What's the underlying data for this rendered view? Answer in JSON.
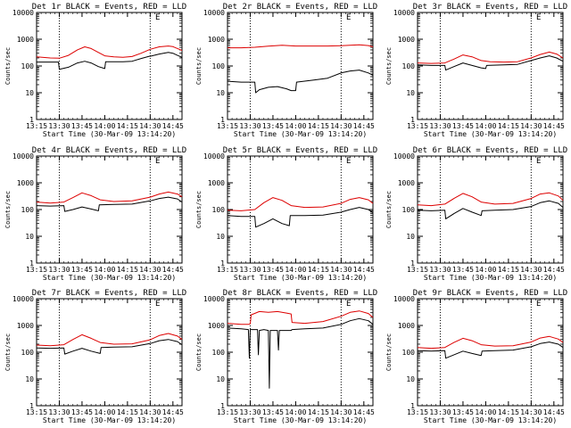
{
  "colors": {
    "events": "#000000",
    "lld": "#dd0000",
    "axis": "#000000",
    "background": "#ffffff"
  },
  "figure": {
    "xlabel": "Start Time (30-Mar-09 13:14:20)",
    "ylabel": "Counts/sec",
    "y_tick_labels": [
      "1",
      "10",
      "100",
      "1000",
      "10000"
    ],
    "x_tick_labels": [
      "13:15",
      "13:30",
      "13:45",
      "14:00",
      "14:15",
      "14:30",
      "14:45"
    ],
    "corner_marks": [
      "E",
      "E",
      "E",
      "E",
      "E",
      "E",
      "E",
      "E",
      "E"
    ]
  },
  "chart_data": [
    {
      "type": "line",
      "title": "Det 1r BLACK = Events, RED = LLD",
      "xlabel": "Start Time (30-Mar-09 13:14:20)",
      "ylabel": "Counts/sec",
      "xlim": [
        13.25,
        14.85
      ],
      "ylim": [
        1,
        10000
      ],
      "yscale": "log",
      "x_ticks": [
        13.25,
        13.5,
        13.75,
        14.0,
        14.25,
        14.5,
        14.75
      ],
      "vlines": [
        13.5,
        14.5
      ],
      "series": [
        {
          "name": "Events",
          "x": [
            13.25,
            13.4,
            13.49,
            13.5,
            13.6,
            13.7,
            13.78,
            13.85,
            13.93,
            14.0,
            14.01,
            14.1,
            14.2,
            14.3,
            14.4,
            14.49,
            14.5,
            14.6,
            14.7,
            14.75,
            14.8,
            14.85
          ],
          "y": [
            140,
            140,
            140,
            75,
            90,
            130,
            150,
            130,
            95,
            80,
            145,
            145,
            145,
            150,
            190,
            230,
            230,
            280,
            320,
            300,
            250,
            210
          ]
        },
        {
          "name": "LLD",
          "x": [
            13.25,
            13.4,
            13.5,
            13.6,
            13.7,
            13.78,
            13.85,
            13.93,
            14.0,
            14.1,
            14.2,
            14.3,
            14.4,
            14.5,
            14.6,
            14.7,
            14.75,
            14.8,
            14.85
          ],
          "y": [
            220,
            200,
            195,
            250,
            400,
            520,
            450,
            320,
            240,
            220,
            210,
            225,
            300,
            420,
            520,
            560,
            530,
            450,
            380
          ]
        }
      ]
    },
    {
      "type": "line",
      "title": "Det 2r BLACK = Events, RED = LLD",
      "xlabel": "Start Time (30-Mar-09 13:14:20)",
      "ylabel": "Counts/sec",
      "xlim": [
        13.25,
        14.85
      ],
      "ylim": [
        1,
        10000
      ],
      "yscale": "log",
      "x_ticks": [
        13.25,
        13.5,
        13.75,
        14.0,
        14.25,
        14.5,
        14.75
      ],
      "vlines": [
        13.5,
        14.5
      ],
      "series": [
        {
          "name": "Events",
          "x": [
            13.25,
            13.4,
            13.55,
            13.56,
            13.6,
            13.7,
            13.8,
            13.9,
            13.95,
            14.0,
            14.01,
            14.2,
            14.35,
            14.5,
            14.6,
            14.7,
            14.8,
            14.85
          ],
          "y": [
            27,
            25,
            25,
            10,
            13,
            16,
            17,
            14,
            12,
            12,
            25,
            30,
            35,
            55,
            65,
            70,
            55,
            45
          ]
        },
        {
          "name": "LLD",
          "x": [
            13.25,
            13.4,
            13.55,
            13.7,
            13.85,
            14.0,
            14.2,
            14.35,
            14.5,
            14.6,
            14.7,
            14.8,
            14.85
          ],
          "y": [
            480,
            480,
            500,
            550,
            600,
            560,
            560,
            560,
            570,
            600,
            620,
            580,
            520
          ]
        }
      ]
    },
    {
      "type": "line",
      "title": "Det 3r BLACK = Events, RED = LLD",
      "xlabel": "Start Time (30-Mar-09 13:14:20)",
      "ylabel": "Counts/sec",
      "xlim": [
        13.25,
        14.85
      ],
      "ylim": [
        1,
        10000
      ],
      "yscale": "log",
      "x_ticks": [
        13.25,
        13.5,
        13.75,
        14.0,
        14.25,
        14.5,
        14.75
      ],
      "vlines": [
        13.5,
        14.5
      ],
      "series": [
        {
          "name": "Events",
          "x": [
            13.25,
            13.4,
            13.55,
            13.56,
            13.65,
            13.75,
            13.85,
            13.95,
            14.0,
            14.01,
            14.2,
            14.35,
            14.5,
            14.6,
            14.7,
            14.78,
            14.85
          ],
          "y": [
            110,
            105,
            105,
            70,
            95,
            130,
            105,
            85,
            80,
            105,
            110,
            115,
            160,
            200,
            240,
            200,
            150
          ]
        },
        {
          "name": "LLD",
          "x": [
            13.25,
            13.4,
            13.55,
            13.65,
            13.75,
            13.85,
            13.95,
            14.05,
            14.2,
            14.35,
            14.5,
            14.6,
            14.7,
            14.78,
            14.85
          ],
          "y": [
            130,
            125,
            130,
            180,
            260,
            220,
            160,
            145,
            140,
            145,
            200,
            270,
            330,
            280,
            200
          ]
        }
      ]
    },
    {
      "type": "line",
      "title": "Det 4r BLACK = Events, RED = LLD",
      "xlabel": "Start Time (30-Mar-09 13:14:20)",
      "ylabel": "Counts/sec",
      "xlim": [
        13.25,
        14.85
      ],
      "ylim": [
        1,
        10000
      ],
      "yscale": "log",
      "x_ticks": [
        13.25,
        13.5,
        13.75,
        14.0,
        14.25,
        14.5,
        14.75
      ],
      "vlines": [
        13.5,
        14.5
      ],
      "series": [
        {
          "name": "Events",
          "x": [
            13.25,
            13.4,
            13.55,
            13.56,
            13.65,
            13.75,
            13.85,
            13.93,
            13.94,
            14.1,
            14.3,
            14.5,
            14.6,
            14.7,
            14.8,
            14.85
          ],
          "y": [
            140,
            135,
            140,
            85,
            100,
            125,
            105,
            90,
            150,
            155,
            160,
            210,
            260,
            290,
            250,
            190
          ]
        },
        {
          "name": "LLD",
          "x": [
            13.25,
            13.4,
            13.55,
            13.65,
            13.75,
            13.85,
            13.95,
            14.1,
            14.3,
            14.5,
            14.6,
            14.7,
            14.8,
            14.85
          ],
          "y": [
            190,
            175,
            190,
            280,
            420,
            330,
            230,
            200,
            210,
            290,
            380,
            450,
            380,
            300
          ]
        }
      ]
    },
    {
      "type": "line",
      "title": "Det 5r BLACK = Events, RED = LLD",
      "xlabel": "Start Time (30-Mar-09 13:14:20)",
      "ylabel": "Counts/sec",
      "xlim": [
        13.25,
        14.85
      ],
      "ylim": [
        1,
        10000
      ],
      "yscale": "log",
      "x_ticks": [
        13.25,
        13.5,
        13.75,
        14.0,
        14.25,
        14.5,
        14.75
      ],
      "vlines": [
        13.5,
        14.5
      ],
      "series": [
        {
          "name": "Events",
          "x": [
            13.25,
            13.4,
            13.55,
            13.56,
            13.65,
            13.75,
            13.85,
            13.93,
            13.94,
            14.1,
            14.3,
            14.5,
            14.6,
            14.7,
            14.8,
            14.85
          ],
          "y": [
            60,
            55,
            55,
            22,
            30,
            45,
            30,
            25,
            60,
            60,
            62,
            80,
            100,
            120,
            100,
            75
          ]
        },
        {
          "name": "LLD",
          "x": [
            13.25,
            13.4,
            13.55,
            13.65,
            13.75,
            13.85,
            13.95,
            14.1,
            14.3,
            14.5,
            14.6,
            14.7,
            14.8,
            14.85
          ],
          "y": [
            95,
            90,
            100,
            180,
            280,
            220,
            140,
            120,
            125,
            170,
            240,
            280,
            230,
            170
          ]
        }
      ]
    },
    {
      "type": "line",
      "title": "Det 6r BLACK = Events, RED = LLD",
      "xlabel": "Start Time (30-Mar-09 13:14:20)",
      "ylabel": "Counts/sec",
      "xlim": [
        13.25,
        14.85
      ],
      "ylim": [
        1,
        10000
      ],
      "yscale": "log",
      "x_ticks": [
        13.25,
        13.5,
        13.75,
        14.0,
        14.25,
        14.5,
        14.75
      ],
      "vlines": [
        13.5,
        14.5
      ],
      "series": [
        {
          "name": "Events",
          "x": [
            13.25,
            13.4,
            13.55,
            13.56,
            13.65,
            13.75,
            13.85,
            13.95,
            13.96,
            14.1,
            14.3,
            14.5,
            14.6,
            14.7,
            14.8,
            14.85
          ],
          "y": [
            95,
            90,
            95,
            45,
            70,
            110,
            80,
            60,
            90,
            95,
            100,
            130,
            180,
            210,
            170,
            120
          ]
        },
        {
          "name": "LLD",
          "x": [
            13.25,
            13.4,
            13.55,
            13.65,
            13.75,
            13.85,
            13.95,
            14.1,
            14.3,
            14.5,
            14.6,
            14.7,
            14.8,
            14.85
          ],
          "y": [
            150,
            140,
            160,
            260,
            400,
            300,
            190,
            160,
            170,
            260,
            380,
            420,
            320,
            220
          ]
        }
      ]
    },
    {
      "type": "line",
      "title": "Det 7r BLACK = Events, RED = LLD",
      "xlabel": "Start Time (30-Mar-09 13:14:20)",
      "ylabel": "Counts/sec",
      "xlim": [
        13.25,
        14.85
      ],
      "ylim": [
        1,
        10000
      ],
      "yscale": "log",
      "x_ticks": [
        13.25,
        13.5,
        13.75,
        14.0,
        14.25,
        14.5,
        14.75
      ],
      "vlines": [
        13.5,
        14.5
      ],
      "series": [
        {
          "name": "Events",
          "x": [
            13.25,
            13.4,
            13.55,
            13.56,
            13.65,
            13.75,
            13.85,
            13.95,
            13.96,
            14.1,
            14.3,
            14.5,
            14.6,
            14.7,
            14.8,
            14.85
          ],
          "y": [
            145,
            140,
            145,
            85,
            110,
            140,
            110,
            90,
            150,
            155,
            160,
            210,
            270,
            300,
            250,
            190
          ]
        },
        {
          "name": "LLD",
          "x": [
            13.25,
            13.4,
            13.55,
            13.65,
            13.75,
            13.85,
            13.95,
            14.1,
            14.3,
            14.5,
            14.6,
            14.7,
            14.8,
            14.85
          ],
          "y": [
            185,
            175,
            190,
            300,
            450,
            330,
            230,
            200,
            205,
            290,
            420,
            500,
            400,
            300
          ]
        }
      ]
    },
    {
      "type": "line",
      "title": "Det 8r BLACK = Events, RED = LLD",
      "xlabel": "Start Time (30-Mar-09 13:14:20)",
      "ylabel": "Counts/sec",
      "xlim": [
        13.25,
        14.85
      ],
      "ylim": [
        1,
        10000
      ],
      "yscale": "log",
      "x_ticks": [
        13.25,
        13.5,
        13.75,
        14.0,
        14.25,
        14.5,
        14.75
      ],
      "vlines": [
        13.5,
        14.5
      ],
      "series": [
        {
          "name": "Events",
          "x": [
            13.25,
            13.4,
            13.48,
            13.49,
            13.5,
            13.58,
            13.59,
            13.6,
            13.65,
            13.7,
            13.71,
            13.72,
            13.8,
            13.81,
            13.82,
            13.95,
            13.96,
            14.1,
            14.3,
            14.5,
            14.6,
            14.7,
            14.8,
            14.85
          ],
          "y": [
            800,
            750,
            700,
            60,
            700,
            700,
            80,
            650,
            700,
            650,
            4.5,
            650,
            650,
            120,
            650,
            650,
            700,
            750,
            800,
            1100,
            1500,
            1800,
            1500,
            1100
          ]
        },
        {
          "name": "LLD",
          "x": [
            13.25,
            13.4,
            13.48,
            13.5,
            13.51,
            13.6,
            13.7,
            13.8,
            13.9,
            13.95,
            13.96,
            14.1,
            14.3,
            14.5,
            14.6,
            14.7,
            14.8,
            14.85
          ],
          "y": [
            1200,
            1100,
            1100,
            1150,
            2500,
            3300,
            3100,
            3300,
            2900,
            2700,
            1300,
            1200,
            1400,
            2200,
            3100,
            3500,
            2800,
            2000
          ]
        }
      ]
    },
    {
      "type": "line",
      "title": "Det 9r BLACK = Events, RED = LLD",
      "xlabel": "Start Time (30-Mar-09 13:14:20)",
      "ylabel": "Counts/sec",
      "xlim": [
        13.25,
        14.85
      ],
      "ylim": [
        1,
        10000
      ],
      "yscale": "log",
      "x_ticks": [
        13.25,
        13.5,
        13.75,
        14.0,
        14.25,
        14.5,
        14.75
      ],
      "vlines": [
        13.5,
        14.5
      ],
      "series": [
        {
          "name": "Events",
          "x": [
            13.25,
            13.4,
            13.55,
            13.56,
            13.65,
            13.75,
            13.85,
            13.95,
            13.96,
            14.1,
            14.3,
            14.5,
            14.6,
            14.7,
            14.8,
            14.85
          ],
          "y": [
            115,
            110,
            115,
            60,
            80,
            110,
            90,
            75,
            110,
            115,
            120,
            160,
            210,
            240,
            200,
            150
          ]
        },
        {
          "name": "LLD",
          "x": [
            13.25,
            13.4,
            13.55,
            13.65,
            13.75,
            13.85,
            13.95,
            14.1,
            14.3,
            14.5,
            14.6,
            14.7,
            14.8,
            14.85
          ],
          "y": [
            150,
            140,
            150,
            230,
            330,
            270,
            190,
            170,
            175,
            240,
            340,
            390,
            310,
            230
          ]
        }
      ]
    }
  ]
}
